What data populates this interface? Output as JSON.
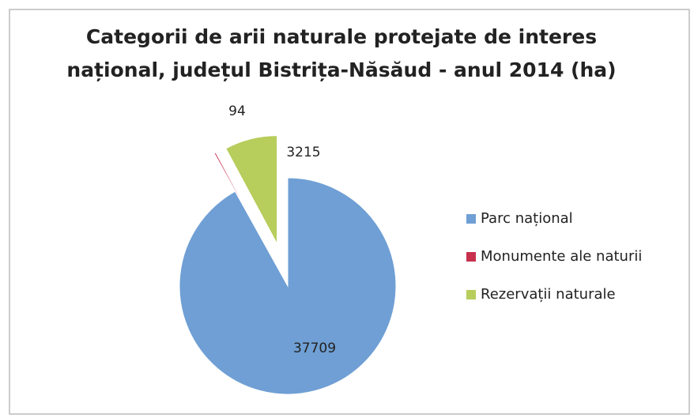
{
  "chart_data": {
    "type": "pie",
    "title": [
      "Categorii de arii naturale protejate de interes",
      "național, județul Bistrița-Năsăud - anul 2014 (ha)"
    ],
    "categories": [
      "Parc național",
      "Monumente ale naturii",
      "Rezervații naturale"
    ],
    "values": [
      37709,
      94,
      3215
    ],
    "colors": [
      "#6f9fd4",
      "#c8304e",
      "#b7cd5c"
    ],
    "legend": "right"
  }
}
